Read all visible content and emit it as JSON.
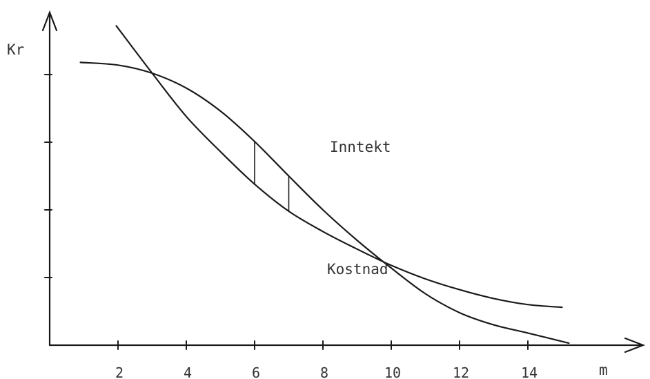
{
  "chart_data": {
    "type": "line",
    "xlabel": "m",
    "ylabel": "Kr",
    "x_ticks": [
      "2",
      "4",
      "6",
      "8",
      "10",
      "12",
      "14"
    ],
    "y_tick_count": 4,
    "xlim": [
      0.2,
      15.5
    ],
    "ylim": [
      0,
      5
    ],
    "series": [
      {
        "name": "Inntekt",
        "x": [
          0.9,
          2,
          3,
          4,
          5,
          6,
          7,
          8,
          9,
          10,
          11,
          12,
          13,
          14,
          15.2
        ],
        "y": [
          4.18,
          4.14,
          4.02,
          3.8,
          3.46,
          3.01,
          2.5,
          2.0,
          1.55,
          1.14,
          0.76,
          0.48,
          0.3,
          0.18,
          0.03
        ]
      },
      {
        "name": "Kostnad",
        "x": [
          1.95,
          3,
          4,
          5,
          6,
          7,
          8,
          9,
          10,
          11,
          12,
          13,
          14,
          15
        ],
        "y": [
          4.72,
          4.02,
          3.38,
          2.86,
          2.38,
          1.98,
          1.68,
          1.42,
          1.18,
          0.98,
          0.82,
          0.69,
          0.6,
          0.56
        ]
      }
    ],
    "vertical_markers": [
      6,
      7
    ],
    "annotations": [
      "Inntekt",
      "Kostnad"
    ]
  }
}
